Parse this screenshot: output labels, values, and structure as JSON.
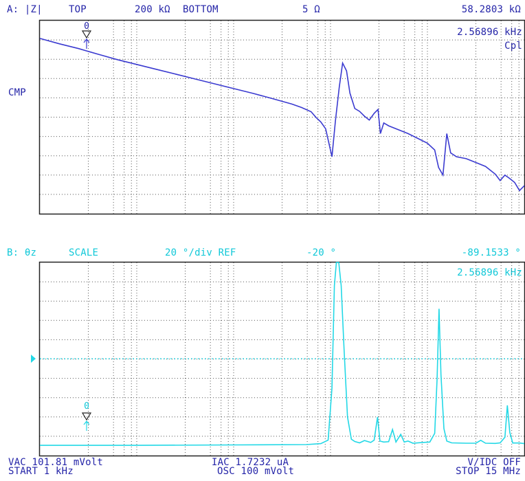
{
  "colors": {
    "trace_a": "#3a3ad0",
    "trace_b": "#22d8e6",
    "label_a": "#2424a8",
    "label_b": "#10c8d8",
    "grid": "#555555",
    "frame": "#222222"
  },
  "trace_a": {
    "header": {
      "param": "A: |Z|",
      "top_label": "TOP",
      "top_value": "200 kΩ",
      "bottom_label": "BOTTOM",
      "bottom_value": "5 Ω",
      "marker_value": "58.2803 kΩ"
    },
    "marker_freq": "2.56896 kHz",
    "equiv_circuit": "Cpl",
    "mode_label": "CMP",
    "marker_label": "0"
  },
  "trace_b": {
    "header": {
      "param": "B: θz",
      "scale_label": "SCALE",
      "scale_value": "20 °/div REF",
      "ref_value": "-20 °",
      "marker_value": "-89.1533 °"
    },
    "marker_freq": "2.56896 kHz",
    "marker_label": "0"
  },
  "footer": {
    "vac": "VAC  101.81 mVolt",
    "start": "START 1 kHz",
    "iac": "IAC  1.7232 uA",
    "osc": "OSC 100 mVolt",
    "vidc": "V/IDC OFF",
    "stop": "STOP 15 MHz"
  },
  "chart_data": [
    {
      "type": "line",
      "title": "A: |Z|",
      "scale": "log",
      "ylim": [
        "5 Ω",
        "200 kΩ"
      ],
      "x_range": [
        "1 kHz",
        "15 MHz"
      ],
      "grid": true,
      "series": [
        {
          "name": "|Z|",
          "values_norm_pct": [
            [
              0,
              90.8
            ],
            [
              4,
              88.0
            ],
            [
              8,
              85.5
            ],
            [
              12,
              82.6
            ],
            [
              16,
              79.8
            ],
            [
              20,
              77.3
            ],
            [
              24,
              74.8
            ],
            [
              28,
              72.3
            ],
            [
              32,
              69.8
            ],
            [
              36,
              67.3
            ],
            [
              40,
              64.8
            ],
            [
              44,
              62.3
            ],
            [
              48,
              59.6
            ],
            [
              52,
              56.8
            ],
            [
              54,
              55.0
            ],
            [
              56,
              52.8
            ],
            [
              57,
              49.9
            ],
            [
              58,
              47.5
            ],
            [
              59,
              44.0
            ],
            [
              60.3,
              29.5
            ],
            [
              61,
              48.0
            ],
            [
              61.8,
              65.5
            ],
            [
              62.5,
              78.0
            ],
            [
              63.3,
              74.0
            ],
            [
              64,
              62.5
            ],
            [
              65,
              54.5
            ],
            [
              66,
              53.0
            ],
            [
              67,
              50.5
            ],
            [
              68,
              48.5
            ],
            [
              69,
              52.0
            ],
            [
              69.8,
              54.0
            ],
            [
              70.3,
              41.5
            ],
            [
              71,
              47.0
            ],
            [
              72,
              45.5
            ],
            [
              74,
              43.5
            ],
            [
              76,
              41.5
            ],
            [
              78,
              39.0
            ],
            [
              80,
              36.5
            ],
            [
              81.5,
              33.0
            ],
            [
              82.3,
              24.0
            ],
            [
              83.2,
              20.0
            ],
            [
              84.0,
              41.5
            ],
            [
              84.8,
              31.5
            ],
            [
              86,
              29.5
            ],
            [
              88,
              28.5
            ],
            [
              90,
              26.5
            ],
            [
              92,
              24.5
            ],
            [
              94,
              20.5
            ],
            [
              95,
              17.2
            ],
            [
              96,
              20.0
            ],
            [
              97,
              18.2
            ],
            [
              98,
              16.2
            ],
            [
              99,
              12.0
            ],
            [
              100,
              14.5
            ]
          ]
        }
      ]
    },
    {
      "type": "line",
      "title": "B: θz",
      "scale": "20 °/div",
      "ref": "-20 °",
      "x_range": [
        "1 kHz",
        "15 MHz"
      ],
      "grid": true,
      "series": [
        {
          "name": "θz",
          "values_norm_pct": [
            [
              0,
              5.3
            ],
            [
              20,
              5.3
            ],
            [
              40,
              5.5
            ],
            [
              55,
              5.7
            ],
            [
              58,
              6.2
            ],
            [
              59.5,
              8.0
            ],
            [
              60.3,
              35.0
            ],
            [
              60.8,
              88.0
            ],
            [
              61.2,
              100.0
            ],
            [
              61.7,
              100.0
            ],
            [
              62.2,
              88.0
            ],
            [
              62.8,
              55.0
            ],
            [
              63.5,
              20.0
            ],
            [
              64.3,
              8.5
            ],
            [
              65,
              7.3
            ],
            [
              66,
              6.6
            ],
            [
              67,
              7.8
            ],
            [
              68.3,
              6.8
            ],
            [
              69,
              8.0
            ],
            [
              69.7,
              20.0
            ],
            [
              70.2,
              7.5
            ],
            [
              71,
              7.0
            ],
            [
              72,
              7.2
            ],
            [
              72.8,
              13.5
            ],
            [
              73.5,
              7.0
            ],
            [
              74.5,
              11.0
            ],
            [
              75.2,
              7.0
            ],
            [
              76,
              7.5
            ],
            [
              77,
              6.4
            ],
            [
              79,
              6.8
            ],
            [
              80.5,
              7.0
            ],
            [
              81.5,
              11.5
            ],
            [
              82,
              40.0
            ],
            [
              82.4,
              76.0
            ],
            [
              82.8,
              42.0
            ],
            [
              83.4,
              14.0
            ],
            [
              84,
              7.5
            ],
            [
              85,
              6.6
            ],
            [
              88,
              6.4
            ],
            [
              90,
              6.4
            ],
            [
              91,
              7.9
            ],
            [
              92,
              6.4
            ],
            [
              94,
              6.3
            ],
            [
              95,
              6.6
            ],
            [
              96,
              9.5
            ],
            [
              96.5,
              26.0
            ],
            [
              97,
              12.0
            ],
            [
              97.6,
              6.5
            ],
            [
              99,
              6.5
            ],
            [
              100,
              6.2
            ]
          ]
        }
      ]
    }
  ]
}
